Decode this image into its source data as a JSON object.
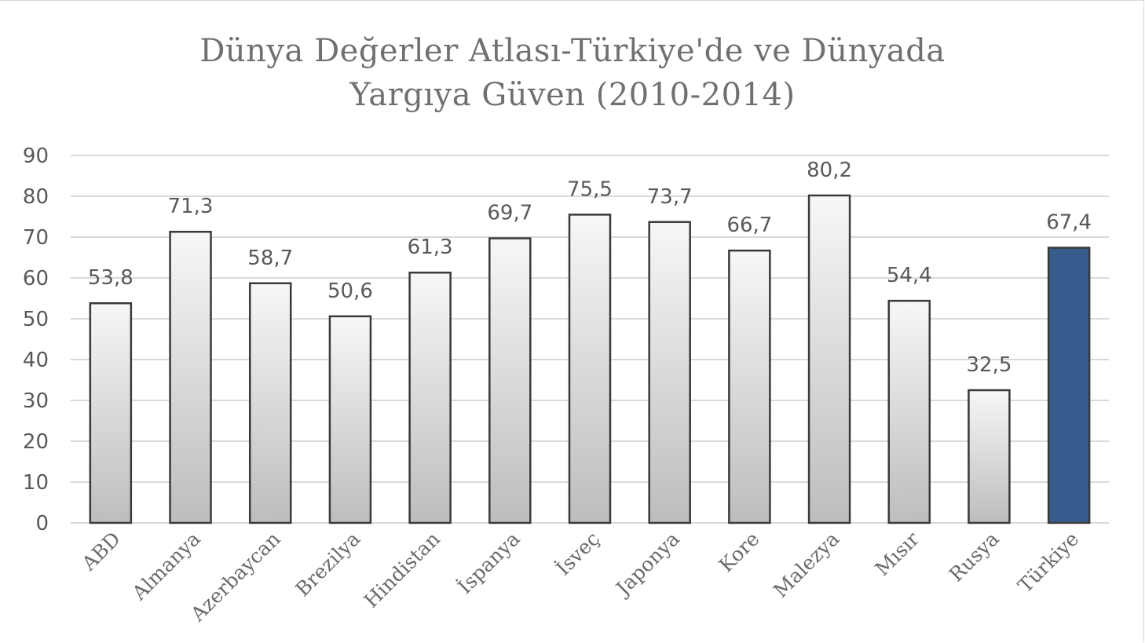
{
  "chart_data": {
    "type": "bar",
    "title": [
      "Dünya Değerler Atlası-Türkiye'de ve Dünyada",
      "Yargıya Güven (2010-2014)"
    ],
    "categories": [
      "ABD",
      "Almanya",
      "Azerbaycan",
      "Brezilya",
      "Hindistan",
      "İspanya",
      "İsveç",
      "Japonya",
      "Kore",
      "Malezya",
      "Mısır",
      "Rusya",
      "Türkiye"
    ],
    "values": [
      53.8,
      71.3,
      58.7,
      50.6,
      61.3,
      69.7,
      75.5,
      73.7,
      66.7,
      80.2,
      54.4,
      32.5,
      67.4
    ],
    "value_labels": [
      "53,8",
      "71,3",
      "58,7",
      "50,6",
      "61,3",
      "69,7",
      "75,5",
      "73,7",
      "66,7",
      "80,2",
      "54,4",
      "32,5",
      "67,4"
    ],
    "ylim": [
      0,
      90
    ],
    "yticks": [
      "0",
      "10",
      "20",
      "30",
      "40",
      "50",
      "60",
      "70",
      "80",
      "90"
    ],
    "xlabel": "",
    "ylabel": "",
    "grid": true,
    "highlight_category": "Türkiye",
    "colors": {
      "bar_fill_top": "#f7f7f7",
      "bar_fill_bottom": "#bdbdbd",
      "bar_stroke": "#3a3a3a",
      "highlight_fill": "#355c8c",
      "grid": "#d9d9d9"
    }
  }
}
